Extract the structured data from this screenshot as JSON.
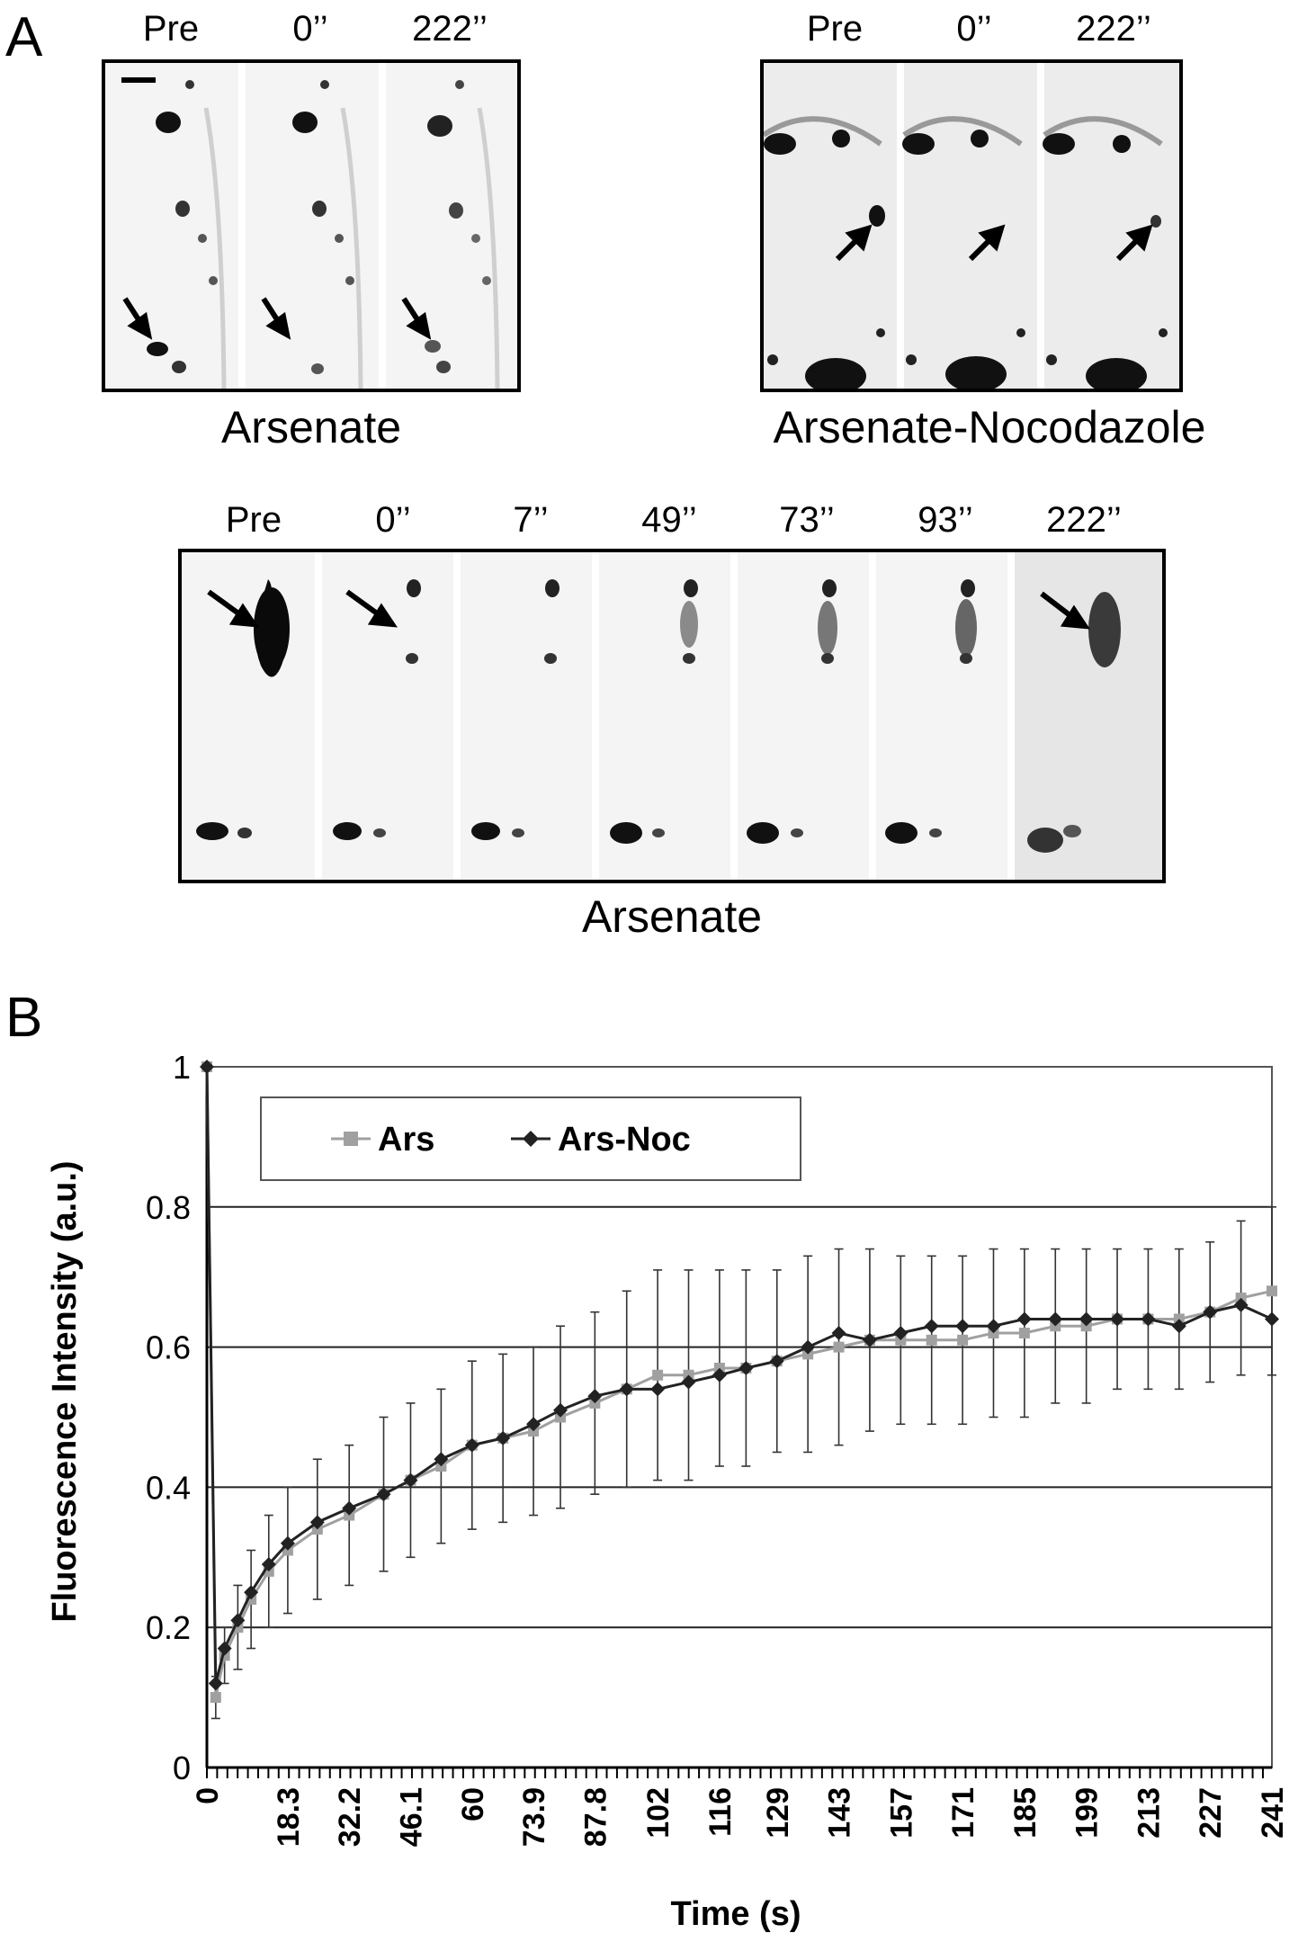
{
  "panel_a": {
    "letter": "A",
    "top_left": {
      "labels": [
        "Pre",
        "0’’",
        "222’’"
      ],
      "caption": "Arsenate"
    },
    "top_right": {
      "labels": [
        "Pre",
        "0’’",
        "222’’"
      ],
      "caption": "Arsenate-Nocodazole"
    },
    "bottom": {
      "labels": [
        "Pre",
        "0’’",
        "7’’",
        "49’’",
        "73’’",
        "93’’",
        "222’’"
      ],
      "caption": "Arsenate"
    }
  },
  "panel_b": {
    "letter": "B"
  },
  "chart_data": {
    "type": "line",
    "title": "",
    "xlabel": "Time (s)",
    "ylabel": "Fluorescence Intensity (a.u.)",
    "ylim": [
      0,
      1
    ],
    "yticks": [
      "0",
      "0.2",
      "0.4",
      "0.6",
      "0.8",
      "1"
    ],
    "xticks": [
      "0",
      "18.3",
      "32.2",
      "46.1",
      "60",
      "73.9",
      "87.8",
      "102",
      "116",
      "129",
      "143",
      "157",
      "171",
      "185",
      "199",
      "213",
      "227",
      "241"
    ],
    "xlim": [
      0,
      241
    ],
    "grid": "horizontal",
    "legend_position": "top-left",
    "colors": {
      "Ars": "#a0a0a0",
      "Ars-Noc": "#222222"
    },
    "series": [
      {
        "name": "Ars",
        "marker": "square",
        "x": [
          0,
          2,
          4,
          7,
          10,
          14,
          18.3,
          25,
          32.2,
          40,
          46.1,
          53,
          60,
          67,
          73.9,
          80,
          87.8,
          95,
          102,
          109,
          116,
          122,
          129,
          136,
          143,
          150,
          157,
          164,
          171,
          178,
          185,
          192,
          199,
          206,
          213,
          220,
          227,
          234,
          241
        ],
        "y": [
          1.0,
          0.1,
          0.16,
          0.2,
          0.24,
          0.28,
          0.31,
          0.34,
          0.36,
          0.39,
          0.41,
          0.43,
          0.46,
          0.47,
          0.48,
          0.5,
          0.52,
          0.54,
          0.56,
          0.56,
          0.57,
          0.57,
          0.58,
          0.59,
          0.6,
          0.61,
          0.61,
          0.61,
          0.61,
          0.62,
          0.62,
          0.63,
          0.63,
          0.64,
          0.64,
          0.64,
          0.65,
          0.67,
          0.68
        ],
        "error": [
          0,
          0.03,
          0.04,
          0.06,
          0.07,
          0.08,
          0.09,
          0.1,
          0.1,
          0.11,
          0.11,
          0.11,
          0.12,
          0.12,
          0.12,
          0.13,
          0.13,
          0.14,
          0.15,
          0.15,
          0.14,
          0.14,
          0.13,
          0.14,
          0.14,
          0.13,
          0.12,
          0.12,
          0.12,
          0.12,
          0.12,
          0.11,
          0.11,
          0.1,
          0.1,
          0.1,
          0.1,
          0.11,
          0.12
        ]
      },
      {
        "name": "Ars-Noc",
        "marker": "diamond",
        "x": [
          0,
          2,
          4,
          7,
          10,
          14,
          18.3,
          25,
          32.2,
          40,
          46.1,
          53,
          60,
          67,
          73.9,
          80,
          87.8,
          95,
          102,
          109,
          116,
          122,
          129,
          136,
          143,
          150,
          157,
          164,
          171,
          178,
          185,
          192,
          199,
          206,
          213,
          220,
          227,
          234,
          241
        ],
        "y": [
          1.0,
          0.12,
          0.17,
          0.21,
          0.25,
          0.29,
          0.32,
          0.35,
          0.37,
          0.39,
          0.41,
          0.44,
          0.46,
          0.47,
          0.49,
          0.51,
          0.53,
          0.54,
          0.54,
          0.55,
          0.56,
          0.57,
          0.58,
          0.6,
          0.62,
          0.61,
          0.62,
          0.63,
          0.63,
          0.63,
          0.64,
          0.64,
          0.64,
          0.64,
          0.64,
          0.63,
          0.65,
          0.66,
          0.64
        ]
      }
    ]
  }
}
